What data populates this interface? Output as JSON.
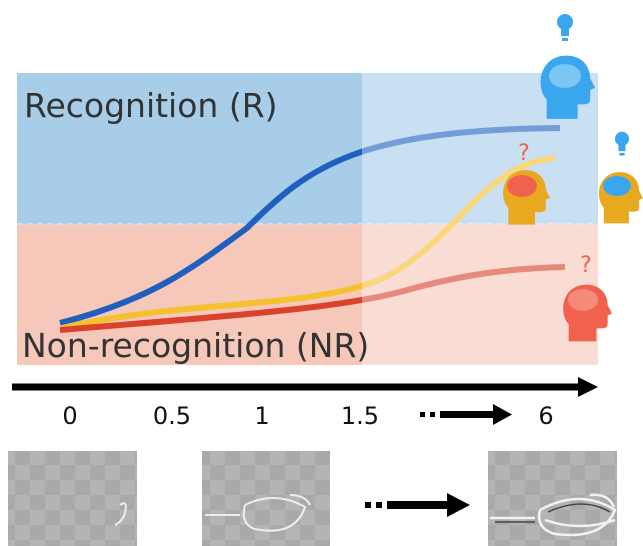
{
  "bands": {
    "recognition": "Recognition (R)",
    "non_recognition": "Non-recognition (NR)"
  },
  "axis": {
    "ticks": [
      "0",
      "0.5",
      "1",
      "1.5",
      "6"
    ]
  },
  "question_marks": [
    "?",
    "?"
  ]
}
